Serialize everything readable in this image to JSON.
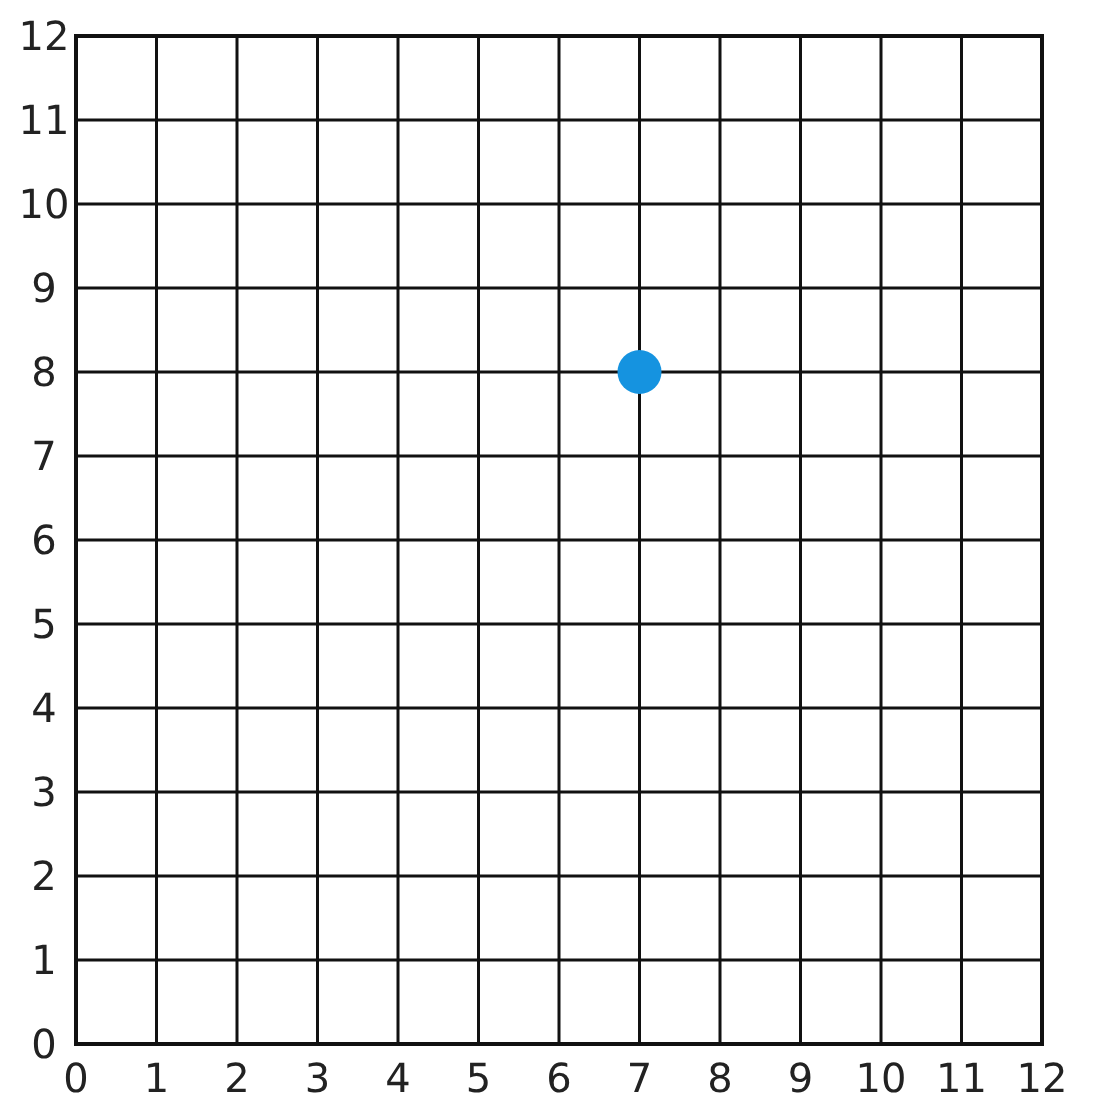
{
  "chart_data": {
    "type": "scatter",
    "x": [
      7
    ],
    "values": [
      8
    ],
    "color": "#1593e0",
    "marker": "circle",
    "xlim": [
      0,
      12
    ],
    "ylim": [
      0,
      12
    ],
    "xticks": [
      0,
      1,
      2,
      3,
      4,
      5,
      6,
      7,
      8,
      9,
      10,
      11,
      12
    ],
    "yticks": [
      0,
      1,
      2,
      3,
      4,
      5,
      6,
      7,
      8,
      9,
      10,
      11,
      12
    ],
    "grid": true
  }
}
